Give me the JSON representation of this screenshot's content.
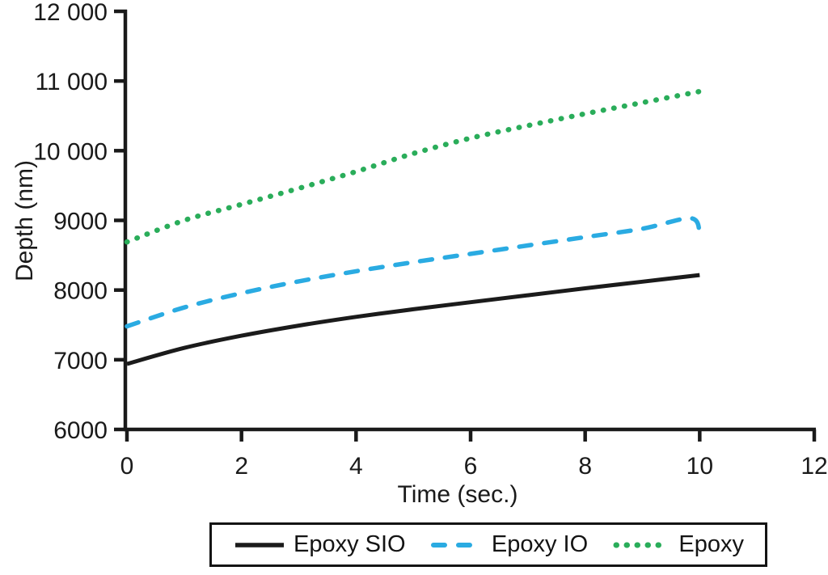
{
  "chart_data": {
    "type": "line",
    "title": "",
    "xlabel": "Time (sec.)",
    "ylabel": "Depth (nm)",
    "xlim": [
      0,
      12
    ],
    "ylim": [
      6000,
      12000
    ],
    "grid": false,
    "legend_position": "bottom-center",
    "axis_color": "#1a1a1a",
    "x_ticks": [
      {
        "v": 0,
        "label": "0"
      },
      {
        "v": 2,
        "label": "2"
      },
      {
        "v": 4,
        "label": "4"
      },
      {
        "v": 6,
        "label": "6"
      },
      {
        "v": 8,
        "label": "8"
      },
      {
        "v": 10,
        "label": "10"
      },
      {
        "v": 12,
        "label": "12"
      }
    ],
    "y_ticks": [
      {
        "v": 6000,
        "label": "6000"
      },
      {
        "v": 7000,
        "label": "7000"
      },
      {
        "v": 8000,
        "label": "8000"
      },
      {
        "v": 9000,
        "label": "9000"
      },
      {
        "v": 10000,
        "label": "10 000"
      },
      {
        "v": 11000,
        "label": "11 000"
      },
      {
        "v": 12000,
        "label": "12 000"
      }
    ],
    "series": [
      {
        "name": "Epoxy SIO",
        "color": "#1b1b1b",
        "line_style": "solid",
        "x": [
          0,
          1,
          2,
          3,
          4,
          5,
          6,
          7,
          8,
          9,
          10
        ],
        "y": [
          6940,
          7170,
          7345,
          7490,
          7615,
          7725,
          7825,
          7925,
          8025,
          8120,
          8215
        ]
      },
      {
        "name": "Epoxy IO",
        "color": "#2aabe2",
        "line_style": "dashed",
        "x": [
          0,
          1,
          2,
          3,
          4,
          5,
          6,
          7,
          8,
          9,
          9.85,
          10
        ],
        "y": [
          7480,
          7750,
          7955,
          8125,
          8270,
          8400,
          8520,
          8640,
          8760,
          8880,
          9030,
          8800
        ]
      },
      {
        "name": "Epoxy",
        "color": "#2aad5a",
        "line_style": "dotted",
        "x": [
          0,
          1,
          2,
          3,
          4,
          5,
          6,
          7,
          8,
          9,
          10
        ],
        "y": [
          8690,
          9000,
          9230,
          9460,
          9700,
          9960,
          10180,
          10360,
          10530,
          10690,
          10850
        ]
      }
    ]
  }
}
